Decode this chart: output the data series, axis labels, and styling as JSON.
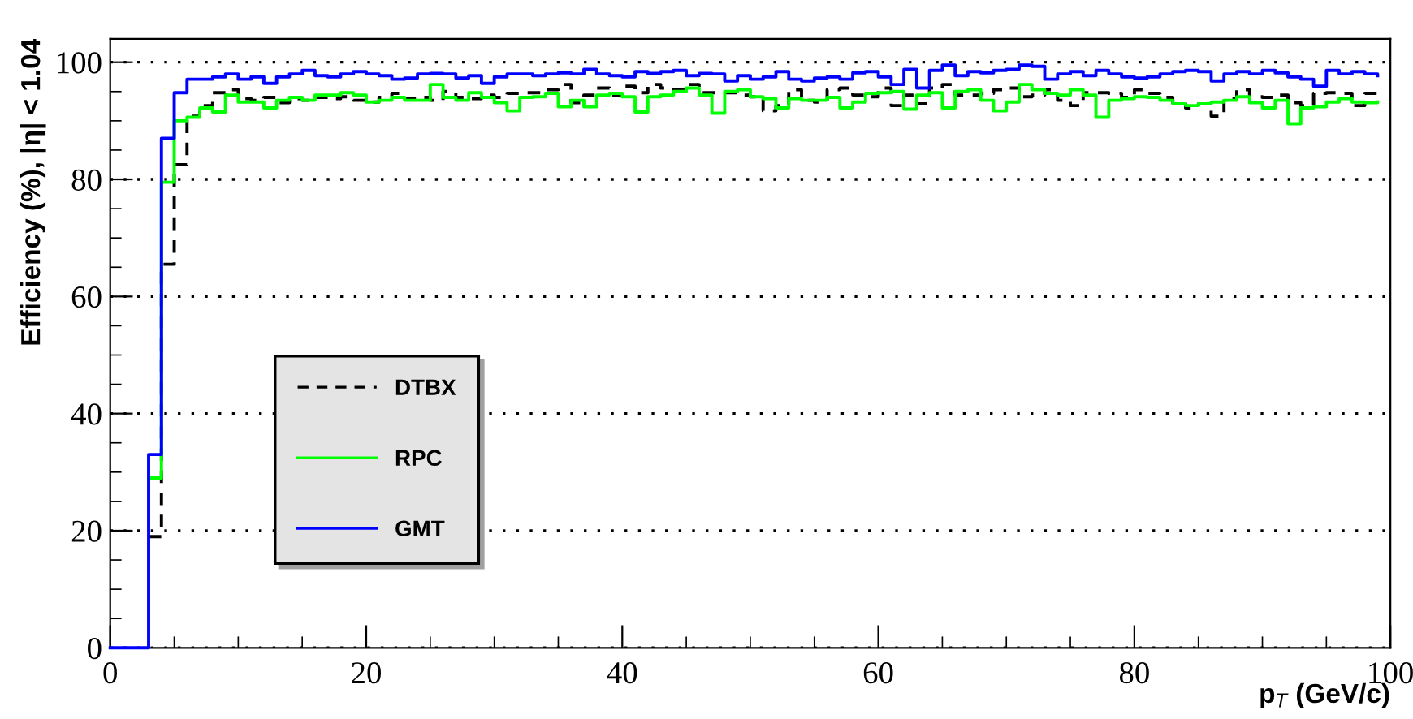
{
  "chart_data": {
    "type": "step",
    "xlabel": "p$_{T}$ (GeV/c)",
    "ylabel": "Efficiency (%), |η| < 1.04",
    "x": [
      0,
      1,
      2,
      3,
      4,
      5,
      6,
      7,
      8,
      9,
      10,
      11,
      12,
      13,
      14,
      15,
      16,
      17,
      18,
      19,
      20,
      21,
      22,
      23,
      24,
      25,
      26,
      27,
      28,
      29,
      30,
      31,
      32,
      33,
      34,
      35,
      36,
      37,
      38,
      39,
      40,
      41,
      42,
      43,
      44,
      45,
      46,
      47,
      48,
      49,
      50,
      51,
      52,
      53,
      54,
      55,
      56,
      57,
      58,
      59,
      60,
      61,
      62,
      63,
      64,
      65,
      66,
      67,
      68,
      69,
      70,
      71,
      72,
      73,
      74,
      75,
      76,
      77,
      78,
      79,
      80,
      81,
      82,
      83,
      84,
      85,
      86,
      87,
      88,
      89,
      90,
      91,
      92,
      93,
      94,
      95,
      96,
      97,
      98,
      99
    ],
    "series": [
      {
        "name": "DTBX",
        "color": "#000000",
        "line_style": "dashed",
        "values": [
          null,
          null,
          null,
          19,
          65.5,
          82.5,
          90.8,
          92.6,
          94.8,
          95.3,
          93.8,
          93.5,
          94.0,
          93.1,
          93.8,
          93.5,
          94.0,
          93.8,
          94.1,
          93.5,
          93.2,
          94.0,
          94.7,
          93.8,
          94.0,
          93.5,
          95.0,
          94.0,
          93.8,
          94.4,
          94.0,
          94.7,
          94.8,
          94.8,
          95.3,
          96.2,
          93.1,
          94.4,
          95.6,
          94.4,
          95.9,
          94.8,
          96.2,
          95.6,
          95.3,
          96.2,
          94.8,
          94.8,
          94.8,
          94.4,
          94.1,
          91.7,
          92.6,
          95.3,
          93.5,
          93.2,
          95.3,
          95.6,
          94.4,
          94.1,
          95.6,
          92.6,
          94.4,
          92.9,
          95.6,
          96.2,
          94.4,
          94.4,
          94.7,
          95.3,
          95.6,
          94.1,
          94.4,
          95.3,
          93.5,
          92.6,
          94.8,
          94.8,
          94.7,
          94.0,
          95.3,
          94.7,
          94.0,
          92.9,
          92.2,
          92.9,
          90.8,
          93.8,
          95.3,
          94.1,
          94.0,
          94.4,
          93.1,
          92.6,
          94.7,
          94.8,
          94.7,
          92.6,
          94.7,
          94.4
        ]
      },
      {
        "name": "RPC",
        "color": "#00ff00",
        "line_style": "solid",
        "values": [
          null,
          null,
          null,
          29,
          79.5,
          90.0,
          90.6,
          92.2,
          91.5,
          94.4,
          93.2,
          93.2,
          92.2,
          93.5,
          94.0,
          93.5,
          94.4,
          94.4,
          94.8,
          94.4,
          93.2,
          93.5,
          94.0,
          93.5,
          93.5,
          96.2,
          94.0,
          93.5,
          94.8,
          94.0,
          93.1,
          91.7,
          94.0,
          94.1,
          94.7,
          92.4,
          93.5,
          92.4,
          94.4,
          94.7,
          94.1,
          91.5,
          94.1,
          94.4,
          95.0,
          95.6,
          94.4,
          91.3,
          95.0,
          95.3,
          94.1,
          93.8,
          92.2,
          93.8,
          93.5,
          93.5,
          94.0,
          92.2,
          93.2,
          94.7,
          94.8,
          95.0,
          92.0,
          94.4,
          94.8,
          92.2,
          95.0,
          95.3,
          93.5,
          91.7,
          93.2,
          96.2,
          95.3,
          94.7,
          94.4,
          95.3,
          94.4,
          90.6,
          93.5,
          93.8,
          94.1,
          94.0,
          93.5,
          92.9,
          92.6,
          92.9,
          93.2,
          93.5,
          94.1,
          93.1,
          92.2,
          93.5,
          89.5,
          92.2,
          92.4,
          93.2,
          93.8,
          93.2,
          93.1,
          93.2
        ]
      },
      {
        "name": "GMT",
        "color": "#0000ff",
        "line_style": "solid",
        "values": [
          0,
          0,
          0,
          33,
          87,
          94.8,
          97.1,
          97.1,
          97.5,
          98.0,
          97.1,
          97.5,
          96.4,
          97.5,
          98.0,
          98.6,
          97.7,
          97.5,
          98.0,
          98.4,
          98.0,
          97.7,
          97.1,
          97.3,
          98.0,
          98.1,
          98.0,
          97.3,
          97.7,
          96.4,
          97.5,
          98.0,
          98.0,
          97.7,
          98.0,
          98.2,
          98.0,
          98.8,
          98.0,
          97.7,
          97.5,
          98.4,
          98.1,
          98.4,
          98.6,
          97.7,
          98.1,
          98.0,
          96.8,
          97.7,
          97.1,
          97.5,
          98.4,
          97.1,
          96.8,
          97.3,
          97.5,
          97.1,
          98.2,
          98.4,
          97.5,
          96.2,
          98.8,
          95.6,
          98.6,
          99.5,
          97.7,
          98.4,
          98.2,
          98.6,
          98.8,
          99.5,
          99.3,
          97.1,
          98.0,
          98.4,
          97.7,
          98.6,
          98.0,
          97.5,
          97.3,
          97.5,
          98.0,
          98.4,
          98.6,
          98.4,
          96.8,
          98.0,
          98.4,
          98.0,
          98.6,
          98.2,
          97.5,
          97.1,
          95.9,
          98.6,
          98.0,
          98.4,
          98.0,
          97.7
        ]
      }
    ],
    "xlim": [
      0,
      100
    ],
    "ylim": [
      0,
      104
    ],
    "xticks": [
      0,
      20,
      40,
      60,
      80,
      100
    ],
    "yticks": [
      0,
      20,
      40,
      60,
      80,
      100
    ],
    "grid": "y",
    "legend": "bottom left"
  }
}
